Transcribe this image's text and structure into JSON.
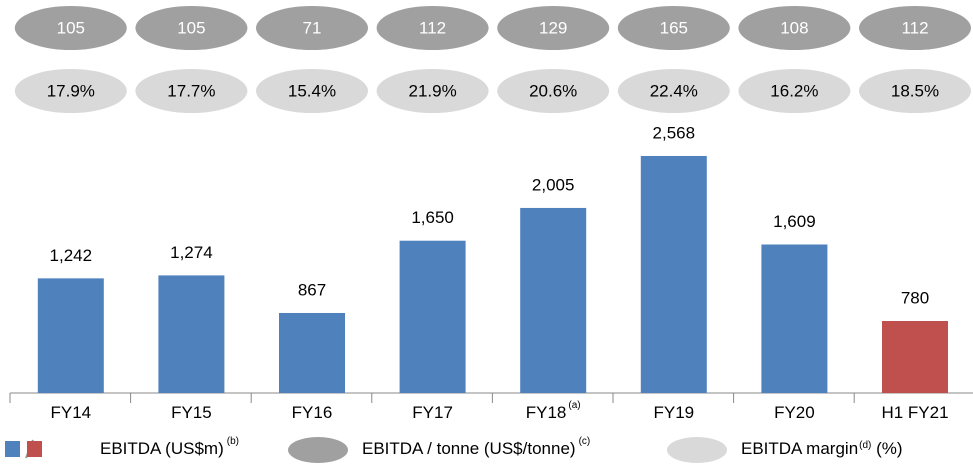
{
  "chart_data": {
    "type": "bar",
    "categories": [
      "FY14",
      "FY15",
      "FY16",
      "FY17",
      "FY18",
      "FY19",
      "FY20",
      "H1 FY21"
    ],
    "category_notes": [
      null,
      null,
      null,
      null,
      "(a)",
      null,
      null,
      null
    ],
    "values": [
      1242,
      1274,
      867,
      1650,
      2005,
      2568,
      1609,
      780
    ],
    "value_labels": [
      "1,242",
      "1,274",
      "867",
      "1,650",
      "2,005",
      "2,568",
      "1,609",
      "780"
    ],
    "colors": [
      "#4f81bd",
      "#4f81bd",
      "#4f81bd",
      "#4f81bd",
      "#4f81bd",
      "#4f81bd",
      "#4f81bd",
      "#c0504d"
    ],
    "ebitda_per_tonne": {
      "values": [
        105,
        105,
        71,
        112,
        129,
        165,
        108,
        112
      ],
      "color": "#a0a0a0"
    },
    "ebitda_margin": {
      "values": [
        17.9,
        17.7,
        15.4,
        21.9,
        20.6,
        22.4,
        16.2,
        18.5
      ],
      "value_labels": [
        "17.9%",
        "17.7%",
        "15.4%",
        "21.9%",
        "20.6%",
        "22.4%",
        "16.2%",
        "18.5%"
      ],
      "color": "#d9d9d9"
    },
    "legend": [
      {
        "label": "EBITDA (US$m)",
        "note": "(b)"
      },
      {
        "label": "EBITDA / tonne (US$/tonne)",
        "note": "(c)"
      },
      {
        "label": "EBITDA margin",
        "note": "(d)",
        "suffix": " (%)"
      }
    ]
  }
}
